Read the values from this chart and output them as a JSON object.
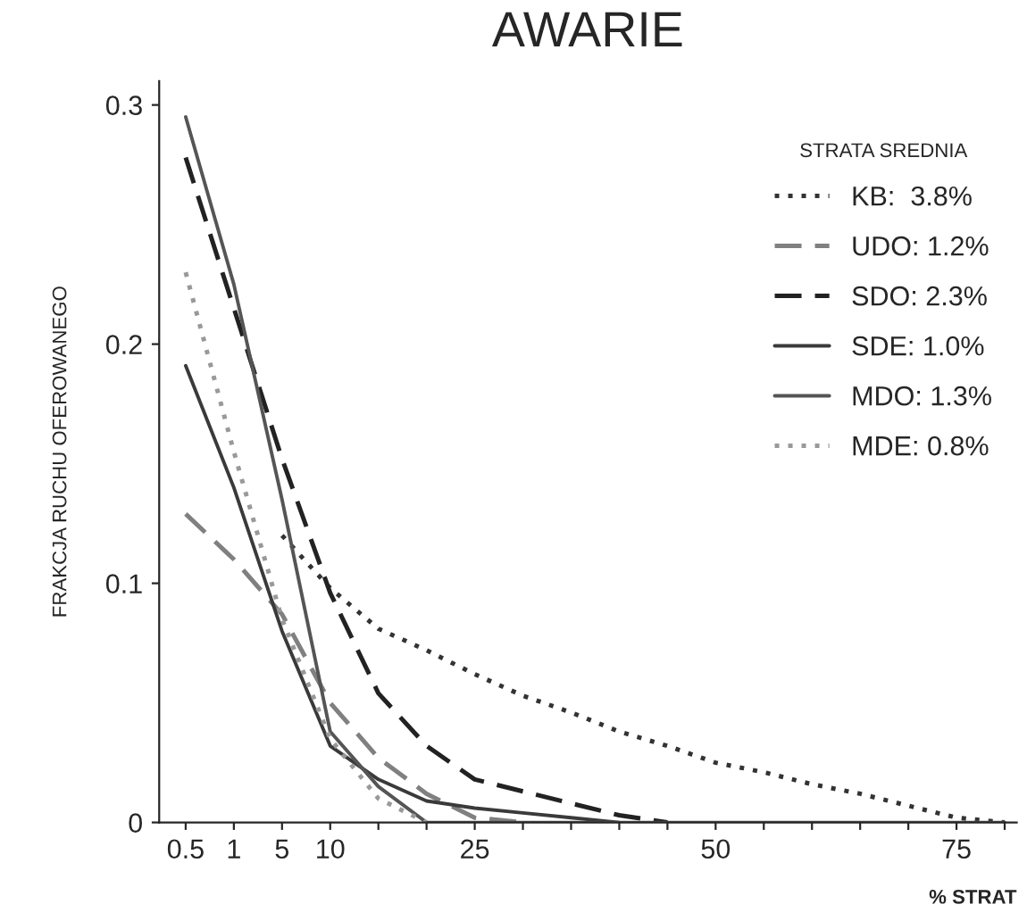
{
  "chart_data": {
    "type": "line",
    "title": "AWARIE",
    "xlabel": "% STRAT",
    "ylabel": "FRAKCJA RUCHU OFEROWANEGO",
    "legend_title": "STRATA SREDNIA",
    "categories": [
      "0.5",
      "1",
      "5",
      "10",
      null,
      null,
      "25",
      null,
      null,
      null,
      null,
      "50",
      null,
      null,
      null,
      null,
      "75",
      null
    ],
    "ylim": [
      0,
      0.31
    ],
    "yticks": [
      0,
      0.1,
      0.2,
      0.3
    ],
    "grid": false,
    "legend": "top right",
    "series": [
      {
        "name": "KB:  3.8%",
        "color": "#333333",
        "line_style": "dotted",
        "values": [
          null,
          null,
          0.12,
          0.098,
          0.081,
          0.072,
          0.062,
          0.053,
          0.046,
          0.038,
          0.032,
          0.025,
          0.021,
          0.016,
          0.012,
          0.007,
          0.002,
          0
        ]
      },
      {
        "name": "UDO: 1.2%",
        "color": "#808080",
        "line_style": "dashed",
        "values": [
          0.129,
          0.11,
          0.087,
          0.05,
          0.027,
          0.012,
          0.002,
          0,
          null,
          null,
          null,
          null,
          null,
          null,
          null,
          null,
          null,
          null
        ]
      },
      {
        "name": "SDO: 2.3%",
        "color": "#222222",
        "line_style": "dashed",
        "values": [
          0.278,
          0.215,
          0.152,
          0.096,
          0.054,
          0.032,
          0.018,
          0.013,
          0.008,
          0.003,
          0,
          null,
          null,
          null,
          null,
          null,
          null,
          null
        ]
      },
      {
        "name": "SDE: 1.0%",
        "color": "#3a3a3a",
        "line_style": "solid",
        "values": [
          0.191,
          0.14,
          0.08,
          0.032,
          0.018,
          0.009,
          0.006,
          0.004,
          0.002,
          0,
          null,
          null,
          null,
          null,
          null,
          null,
          null,
          null
        ]
      },
      {
        "name": "MDO: 1.3%",
        "color": "#555555",
        "line_style": "solid",
        "values": [
          0.295,
          0.225,
          0.135,
          0.038,
          0.015,
          0,
          0,
          0,
          0,
          0,
          0,
          0,
          0,
          0,
          0,
          0,
          0,
          0
        ]
      },
      {
        "name": "MDE: 0.8%",
        "color": "#999999",
        "line_style": "dotted",
        "values": [
          0.23,
          0.155,
          0.085,
          0.035,
          0.01,
          0,
          null,
          null,
          null,
          null,
          null,
          null,
          null,
          null,
          null,
          null,
          null,
          null
        ]
      }
    ]
  }
}
